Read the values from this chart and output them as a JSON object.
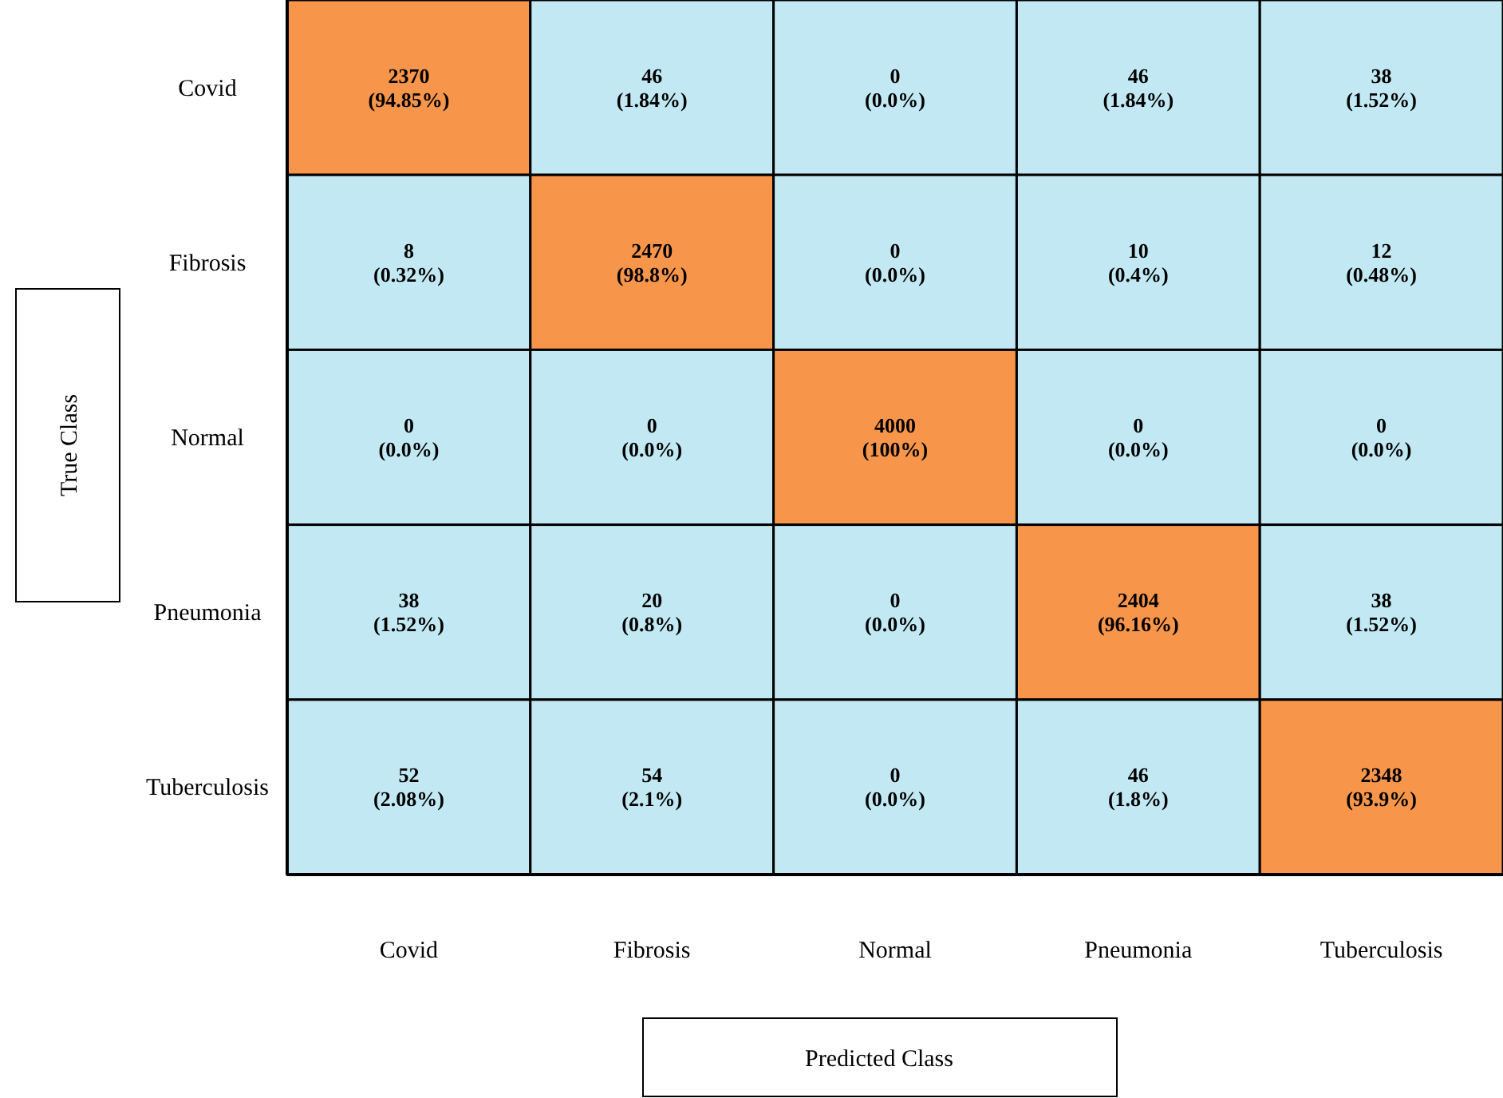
{
  "chart_data": {
    "type": "heatmap",
    "xlabel": "Predicted Class",
    "ylabel": "True Class",
    "categories": [
      "Covid",
      "Fibrosis",
      "Normal",
      "Pneumonia",
      "Tuberculosis"
    ],
    "y_categories": [
      "Covid",
      "Fibrosis",
      "Normal",
      "Pneumonia",
      "Tuberculosis"
    ],
    "cells": [
      [
        2370,
        46,
        0,
        46,
        38
      ],
      [
        8,
        2470,
        0,
        10,
        12
      ],
      [
        0,
        0,
        4000,
        0,
        0
      ],
      [
        38,
        20,
        0,
        2404,
        38
      ],
      [
        52,
        54,
        0,
        46,
        2348
      ]
    ],
    "colors": [
      "#c2e9f3",
      "#f7964a"
    ],
    "data_labels": true,
    "annotations": [
      "(94.85%)",
      "(1.84%)",
      "(0.0%)",
      "(1.84%)",
      "(1.52%)",
      "(0.32%)",
      "(98.8%)",
      "(0.0%)",
      "(0.4%)",
      "(0.48%)",
      "(0.0%)",
      "(0.0%)",
      "(100%)",
      "(0.0%)",
      "(0.0%)",
      "(1.52%)",
      "(0.8%)",
      "(0.0%)",
      "(96.16%)",
      "(1.52%)",
      "(2.08%)",
      "(2.1%)",
      "(0.0%)",
      "(1.8%)",
      "(93.9%)"
    ]
  }
}
